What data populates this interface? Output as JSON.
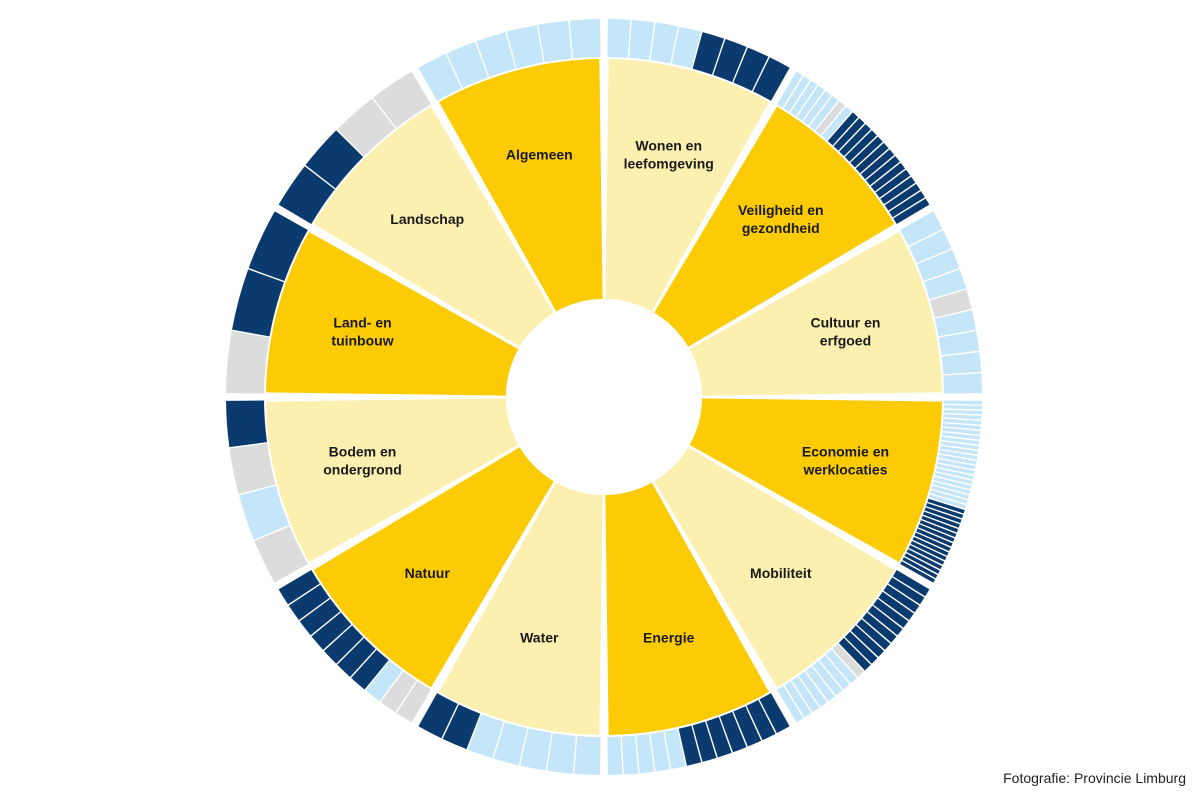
{
  "colors": {
    "dark_yellow": "#FBCB05",
    "light_yellow": "#FCF0B0",
    "navy": "#0B3B6E",
    "light_blue": "#C5E6F8",
    "grey": "#DCDCDC",
    "background": "#FFFFFF"
  },
  "segments": [
    {
      "label": "Wonen en\nleefomgeving",
      "shade": "light",
      "ring": "LLLLNNNN"
    },
    {
      "label": "Veiligheid en\ngezondheid",
      "shade": "dark",
      "ring": "LLLLLLGLNNNNNNNNNNNNNN"
    },
    {
      "label": "Cultuur en\nerfgoed",
      "shade": "light",
      "ring": "LLLLGLLLL"
    },
    {
      "label": "Economie en\nwerklocaties",
      "shade": "dark",
      "ring": "LLLLLLLLLLLLLLLLLLLLLLNNNNNNNNNNNNNNNN"
    },
    {
      "label": "Mobiliteit",
      "shade": "light",
      "ring": "NNNNNNNNNNNGLLLLLLLL"
    },
    {
      "label": "Energie",
      "shade": "dark",
      "ring": "NNNNNNNLLLLL"
    },
    {
      "label": "Water",
      "shade": "light",
      "ring": "LLLLLNN"
    },
    {
      "label": "Natuur",
      "shade": "dark",
      "ring": "GGLNNNNNNN"
    },
    {
      "label": "Bodem en\nondergrond",
      "shade": "light",
      "ring": "GLGN"
    },
    {
      "label": "Land- en\ntuinbouw",
      "shade": "dark",
      "ring": "GNN"
    },
    {
      "label": "Landschap",
      "shade": "light",
      "ring": "NNGG"
    },
    {
      "label": "Algemeen",
      "shade": "dark",
      "ring": "LLLLLL"
    }
  ],
  "credit": "Fotografie: Provincie Limburg"
}
